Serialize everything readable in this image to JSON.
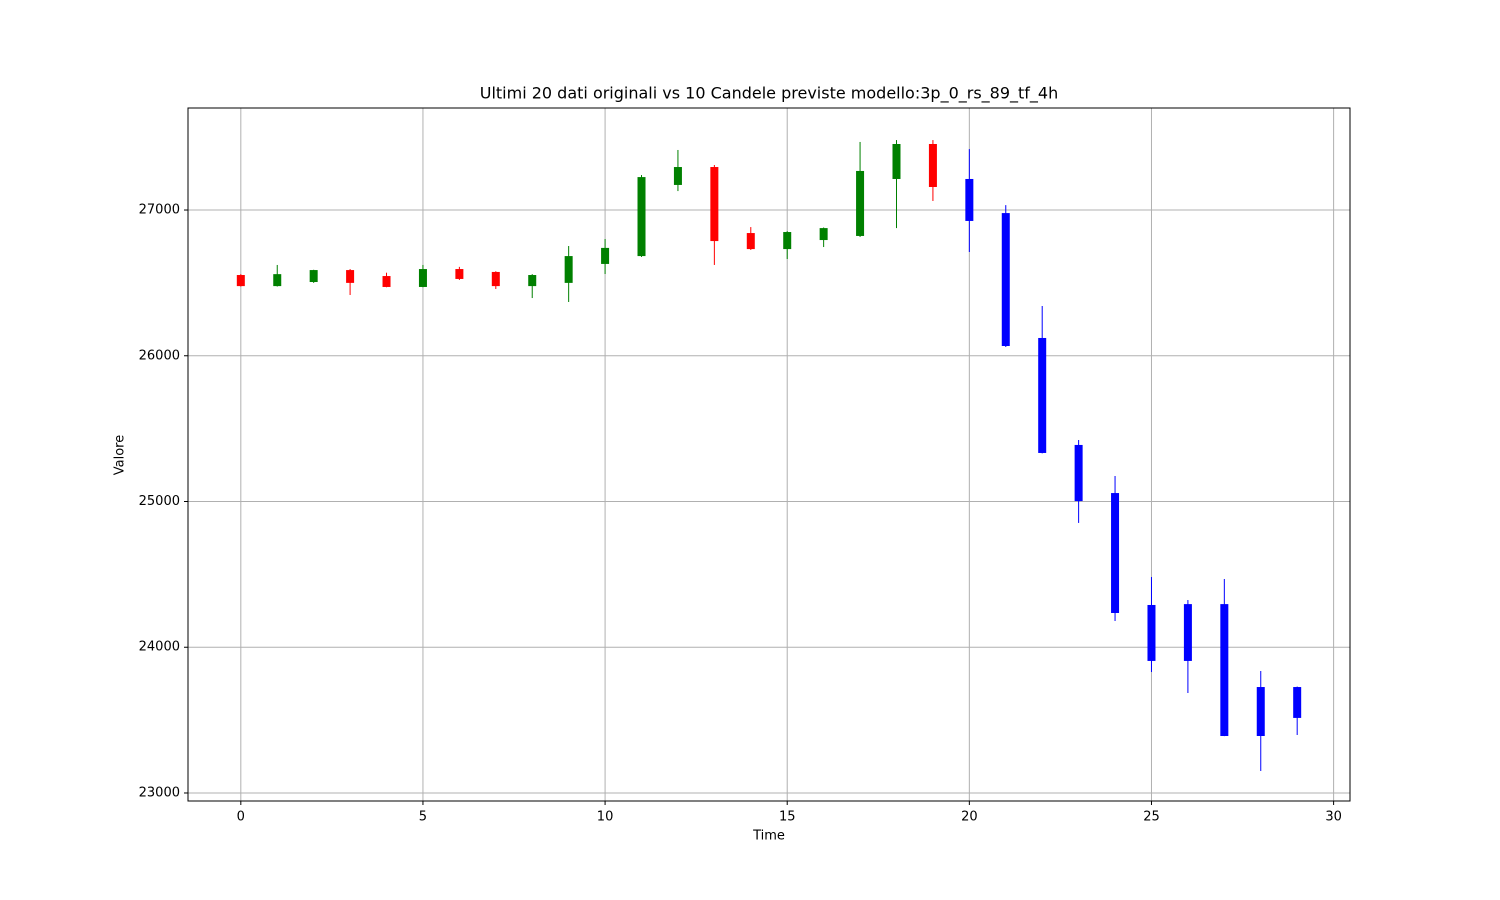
{
  "chart_data": {
    "type": "candlestick",
    "title": "Ultimi 20 dati originali vs 10 Candele previste modello:3p_0_rs_89_tf_4h",
    "x_label": "Time",
    "y_label": "Valore",
    "xlim": [
      -1.45,
      30.45
    ],
    "ylim": [
      22945,
      27700
    ],
    "xticks": [
      0,
      5,
      10,
      15,
      20,
      25,
      30
    ],
    "yticks": [
      23000,
      24000,
      25000,
      26000,
      27000
    ],
    "grid": true,
    "series": [
      {
        "color_up": "green",
        "color_down": "red",
        "x": [
          0,
          1,
          2,
          3,
          4,
          5,
          6,
          7,
          8,
          9,
          10,
          11,
          12,
          13,
          14,
          15,
          16,
          17,
          18,
          19
        ],
        "open": [
          26554,
          26478,
          26506,
          26588,
          26547,
          26472,
          26595,
          26575,
          26478,
          26500,
          26630,
          26684,
          27172,
          27295,
          26842,
          26732,
          26794,
          26822,
          27213,
          27453
        ],
        "high": [
          26560,
          26623,
          26590,
          26595,
          26570,
          26623,
          26610,
          26580,
          26560,
          26753,
          26801,
          27240,
          27412,
          27309,
          26883,
          26855,
          26880,
          27467,
          27480,
          27480
        ],
        "low": [
          26475,
          26475,
          26500,
          26417,
          26470,
          26470,
          26520,
          26458,
          26396,
          26369,
          26561,
          26678,
          27130,
          26623,
          26726,
          26664,
          26746,
          26815,
          26876,
          27062
        ],
        "close": [
          26478,
          26560,
          26588,
          26500,
          26472,
          26595,
          26527,
          26478,
          26554,
          26684,
          26740,
          27226,
          27295,
          26787,
          26732,
          26849,
          26876,
          27268,
          27453,
          27158
        ]
      },
      {
        "color": "blue",
        "x": [
          20,
          21,
          22,
          23,
          24,
          25,
          26,
          27,
          28,
          29
        ],
        "open": [
          27213,
          26979,
          26122,
          25388,
          25058,
          24290,
          24296,
          24296,
          23727,
          23727
        ],
        "high": [
          27418,
          27034,
          26341,
          25422,
          25175,
          24482,
          24324,
          24468,
          23837,
          23730
        ],
        "low": [
          26712,
          26060,
          25330,
          24853,
          24180,
          23830,
          23686,
          23390,
          23151,
          23398
        ],
        "close": [
          26925,
          26067,
          25333,
          25003,
          24235,
          23906,
          23906,
          23391,
          23391,
          23515
        ]
      }
    ]
  }
}
